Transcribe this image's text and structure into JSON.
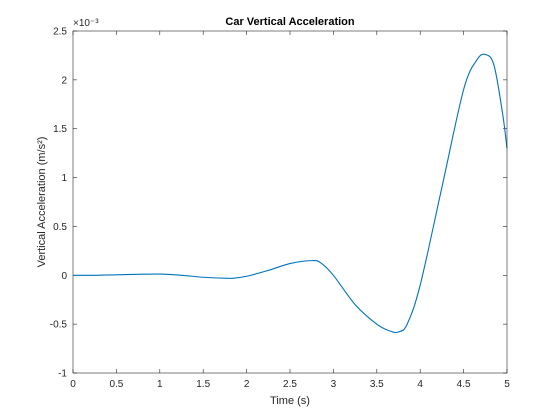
{
  "chart_data": {
    "type": "line",
    "title": "Car Vertical Acceleration",
    "xlabel": "Time (s)",
    "ylabel": "Vertical Acceleration (m/s²)",
    "y_exponent_label": "×10⁻³",
    "xlim": [
      0,
      5
    ],
    "ylim": [
      -1,
      2.5
    ],
    "y_scale_factor": "1e-3",
    "grid": false,
    "x_ticks": [
      "0",
      "0.5",
      "1",
      "1.5",
      "2",
      "2.5",
      "3",
      "3.5",
      "4",
      "4.5",
      "5"
    ],
    "y_ticks": [
      "-1",
      "-0.5",
      "0",
      "0.5",
      "1",
      "1.5",
      "2",
      "2.5"
    ],
    "series": [
      {
        "color": "#0072BD",
        "x": [
          0,
          0.25,
          0.5,
          0.75,
          1.0,
          1.25,
          1.5,
          1.75,
          1.85,
          2.0,
          2.25,
          2.5,
          2.75,
          2.85,
          3.0,
          3.25,
          3.5,
          3.65,
          3.75,
          3.85,
          4.0,
          4.25,
          4.5,
          4.65,
          4.75,
          4.85,
          4.95,
          5.0
        ],
        "y": [
          0.0,
          0.0,
          0.005,
          0.01,
          0.012,
          0.0,
          -0.02,
          -0.03,
          -0.03,
          -0.01,
          0.05,
          0.12,
          0.15,
          0.13,
          0.0,
          -0.3,
          -0.5,
          -0.57,
          -0.58,
          -0.5,
          -0.1,
          0.9,
          1.9,
          2.2,
          2.26,
          2.15,
          1.65,
          1.3
        ]
      }
    ]
  }
}
